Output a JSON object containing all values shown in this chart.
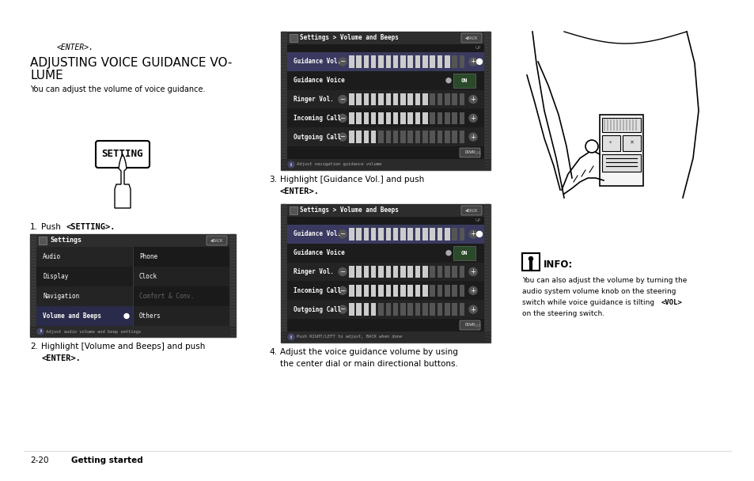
{
  "bg_color": "#ffffff",
  "page_width": 9.54,
  "page_height": 6.08,
  "text_enter": "<ENTER>.",
  "title_line1": "ADJUSTING VOICE GUIDANCE VO-",
  "title_line2": "LUME",
  "intro_text": "You can adjust the volume of voice guidance.",
  "info_body_lines": [
    "You can also adjust the volume by turning the",
    "audio system volume knob on the steering",
    "switch while voice guidance is tilting <VOL>",
    "on the steering switch."
  ],
  "screen1_title": "Settings > Volume and Beeps",
  "screen1_note": "Adjust navigation guidance volume",
  "screen2_title": "Settings > Volume and Beeps",
  "screen2_note": "Push RIGHT/LEFT to adjust, BACK when done",
  "settings_title": "Settings",
  "settings_rows_left": [
    "Audio",
    "Display",
    "Navigation",
    "Volume and Beeps"
  ],
  "settings_rows_right": [
    "Phone",
    "Clock",
    "Comfort & Conv.",
    "Others"
  ],
  "vol_screen_rows": [
    "Guidance Vol.",
    "Guidance Voice",
    "Ringer Vol.",
    "Incoming Call",
    "Outgoing Call"
  ],
  "vol_bars": [
    14,
    0,
    11,
    11,
    4
  ],
  "vol_bars2": [
    14,
    0,
    11,
    11,
    4
  ],
  "screen_dark": "#1c1c1c",
  "screen_titlebar": "#2a2a2a",
  "screen_row_alt": "#242424",
  "screen_highlight": "#3a3a60"
}
